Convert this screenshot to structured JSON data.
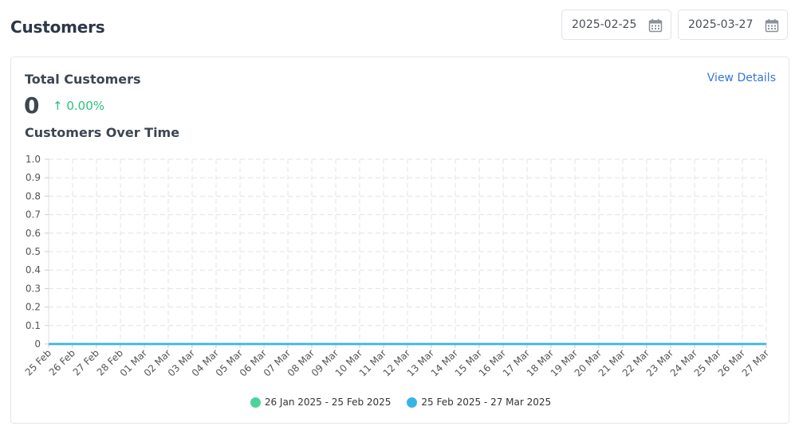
{
  "page": {
    "title": "Customers"
  },
  "filters": {
    "start_date": "2025-02-25",
    "end_date": "2025-03-27"
  },
  "card": {
    "title": "Total Customers",
    "view_details": "View Details",
    "total": "0",
    "change": "↑ 0.00%",
    "chart_title": "Customers Over Time"
  },
  "colors": {
    "previous_series": "#4cd39a",
    "current_series": "#36b4e8",
    "change_positive": "#2bbf7e",
    "link": "#3576d6"
  },
  "chart_data": {
    "type": "line",
    "x": [
      "25 Feb",
      "26 Feb",
      "27 Feb",
      "28 Feb",
      "01 Mar",
      "02 Mar",
      "03 Mar",
      "04 Mar",
      "05 Mar",
      "06 Mar",
      "07 Mar",
      "08 Mar",
      "09 Mar",
      "10 Mar",
      "11 Mar",
      "12 Mar",
      "13 Mar",
      "14 Mar",
      "15 Mar",
      "16 Mar",
      "17 Mar",
      "18 Mar",
      "19 Mar",
      "20 Mar",
      "21 Mar",
      "22 Mar",
      "23 Mar",
      "24 Mar",
      "25 Mar",
      "26 Mar",
      "27 Mar"
    ],
    "yticks": [
      "1.0",
      "0.9",
      "0.8",
      "0.7",
      "0.6",
      "0.5",
      "0.4",
      "0.3",
      "0.2",
      "0.1",
      "0"
    ],
    "ylim": [
      0,
      1
    ],
    "grid": true,
    "legend_position": "bottom-center",
    "series": [
      {
        "name": "26 Jan 2025 - 25 Feb 2025",
        "color": "#4cd39a",
        "values": [
          0,
          0,
          0,
          0,
          0,
          0,
          0,
          0,
          0,
          0,
          0,
          0,
          0,
          0,
          0,
          0,
          0,
          0,
          0,
          0,
          0,
          0,
          0,
          0,
          0,
          0,
          0,
          0,
          0,
          0,
          0
        ]
      },
      {
        "name": "25 Feb 2025 - 27 Mar 2025",
        "color": "#36b4e8",
        "values": [
          0,
          0,
          0,
          0,
          0,
          0,
          0,
          0,
          0,
          0,
          0,
          0,
          0,
          0,
          0,
          0,
          0,
          0,
          0,
          0,
          0,
          0,
          0,
          0,
          0,
          0,
          0,
          0,
          0,
          0,
          0
        ]
      }
    ]
  }
}
